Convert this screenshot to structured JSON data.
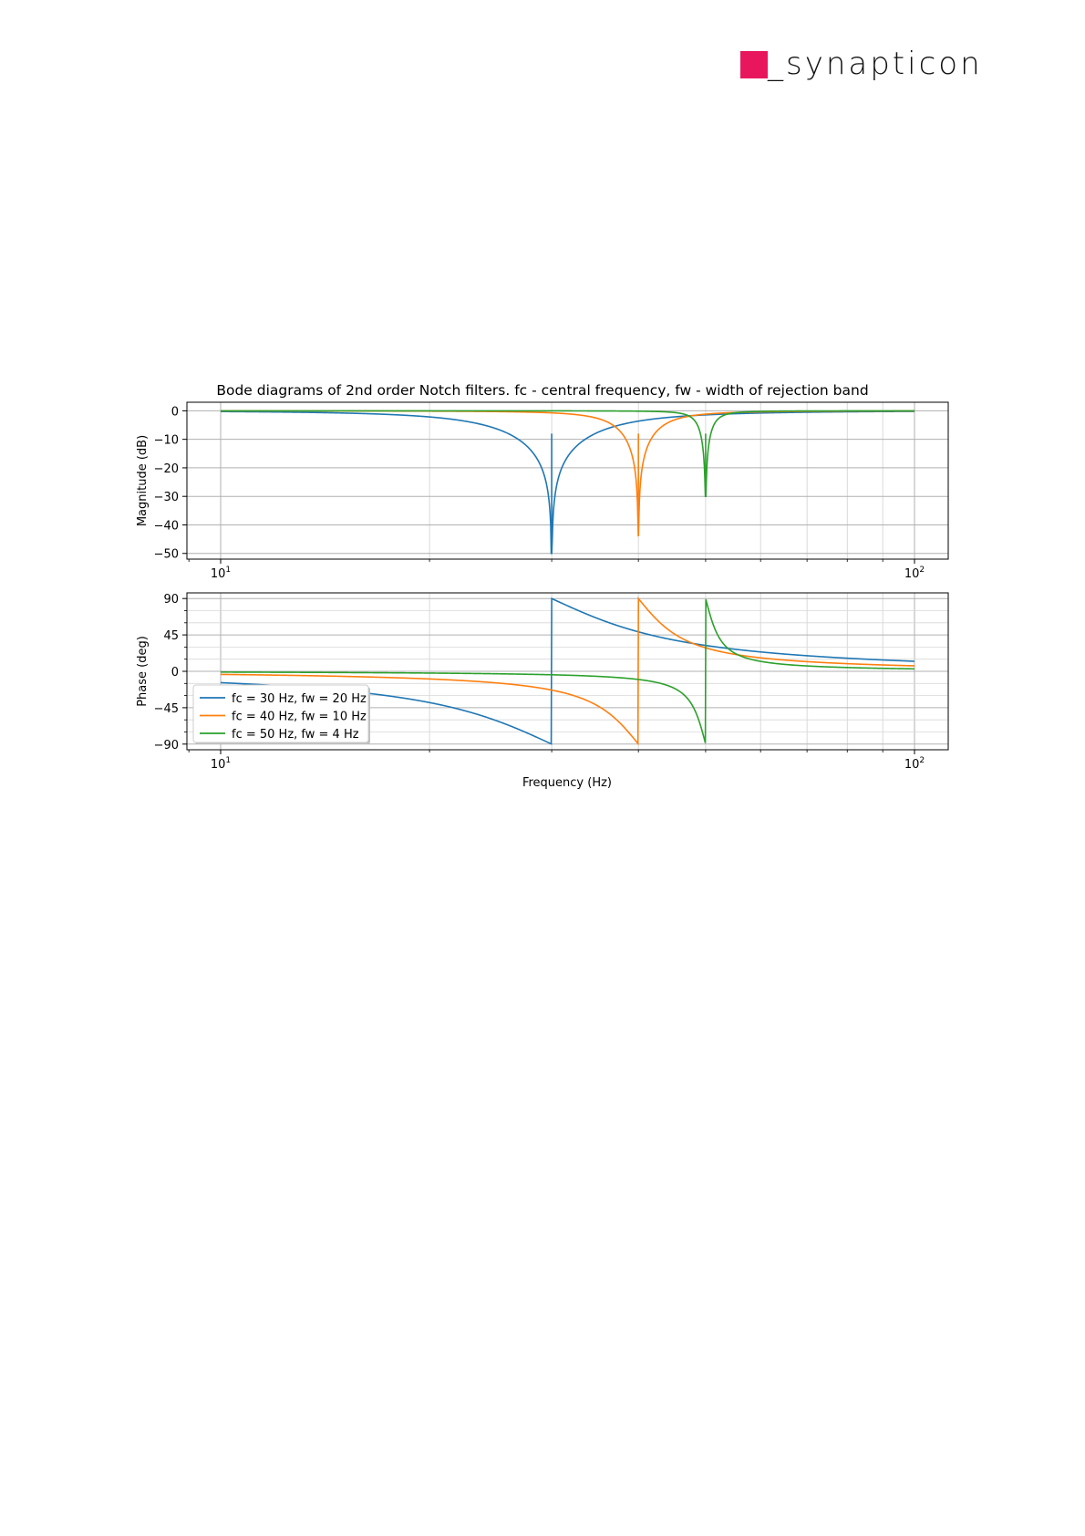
{
  "page": {
    "logo_text": "_synapticon"
  },
  "chart_data": [
    {
      "type": "line",
      "title": "Bode diagrams of 2nd order Notch filters. fc - central frequency, fw - width of rejection band",
      "xlabel": "",
      "ylabel": "Magnitude (dB)",
      "xscale": "log",
      "xlim": [
        10,
        100
      ],
      "ylim": [
        -52,
        3
      ],
      "yticks": [
        0,
        -10,
        -20,
        -30,
        -40,
        -50
      ],
      "ytick_labels": [
        "0",
        "−10",
        "−20",
        "−30",
        "−40",
        "−50"
      ],
      "xtick_labels": [
        "10",
        "10"
      ],
      "xtick_exponents": [
        "1",
        "2"
      ],
      "grid": true,
      "series": [
        {
          "name": "fc = 30 Hz, fw = 20 Hz",
          "color": "#1f77b4",
          "fc": 30,
          "fw": 20,
          "min_value": -50
        },
        {
          "name": "fc = 40 Hz, fw = 10 Hz",
          "color": "#ff7f0e",
          "fc": 40,
          "fw": 10,
          "min_value": -44
        },
        {
          "name": "fc = 50 Hz, fw = 4 Hz",
          "color": "#2ca02c",
          "fc": 50,
          "fw": 4,
          "min_value": -30
        }
      ]
    },
    {
      "type": "line",
      "title": "",
      "xlabel": "Frequency (Hz)",
      "ylabel": "Phase (deg)",
      "xscale": "log",
      "xlim": [
        10,
        100
      ],
      "ylim": [
        -97,
        97
      ],
      "yticks": [
        90,
        45,
        0,
        -45,
        -90
      ],
      "ytick_labels": [
        "90",
        "45",
        "0",
        "−45",
        "−90"
      ],
      "xtick_labels": [
        "10",
        "10"
      ],
      "xtick_exponents": [
        "1",
        "2"
      ],
      "grid": true,
      "legend": "lower-left",
      "series": [
        {
          "name": "fc = 30 Hz, fw = 20 Hz",
          "color": "#1f77b4",
          "fc": 30,
          "fw": 20,
          "range": [
            -90,
            90
          ]
        },
        {
          "name": "fc = 40 Hz, fw = 10 Hz",
          "color": "#ff7f0e",
          "fc": 40,
          "fw": 10,
          "range": [
            -90,
            90
          ]
        },
        {
          "name": "fc = 50 Hz, fw = 4 Hz",
          "color": "#2ca02c",
          "fc": 50,
          "fw": 4,
          "range": [
            -90,
            90
          ]
        }
      ]
    }
  ]
}
